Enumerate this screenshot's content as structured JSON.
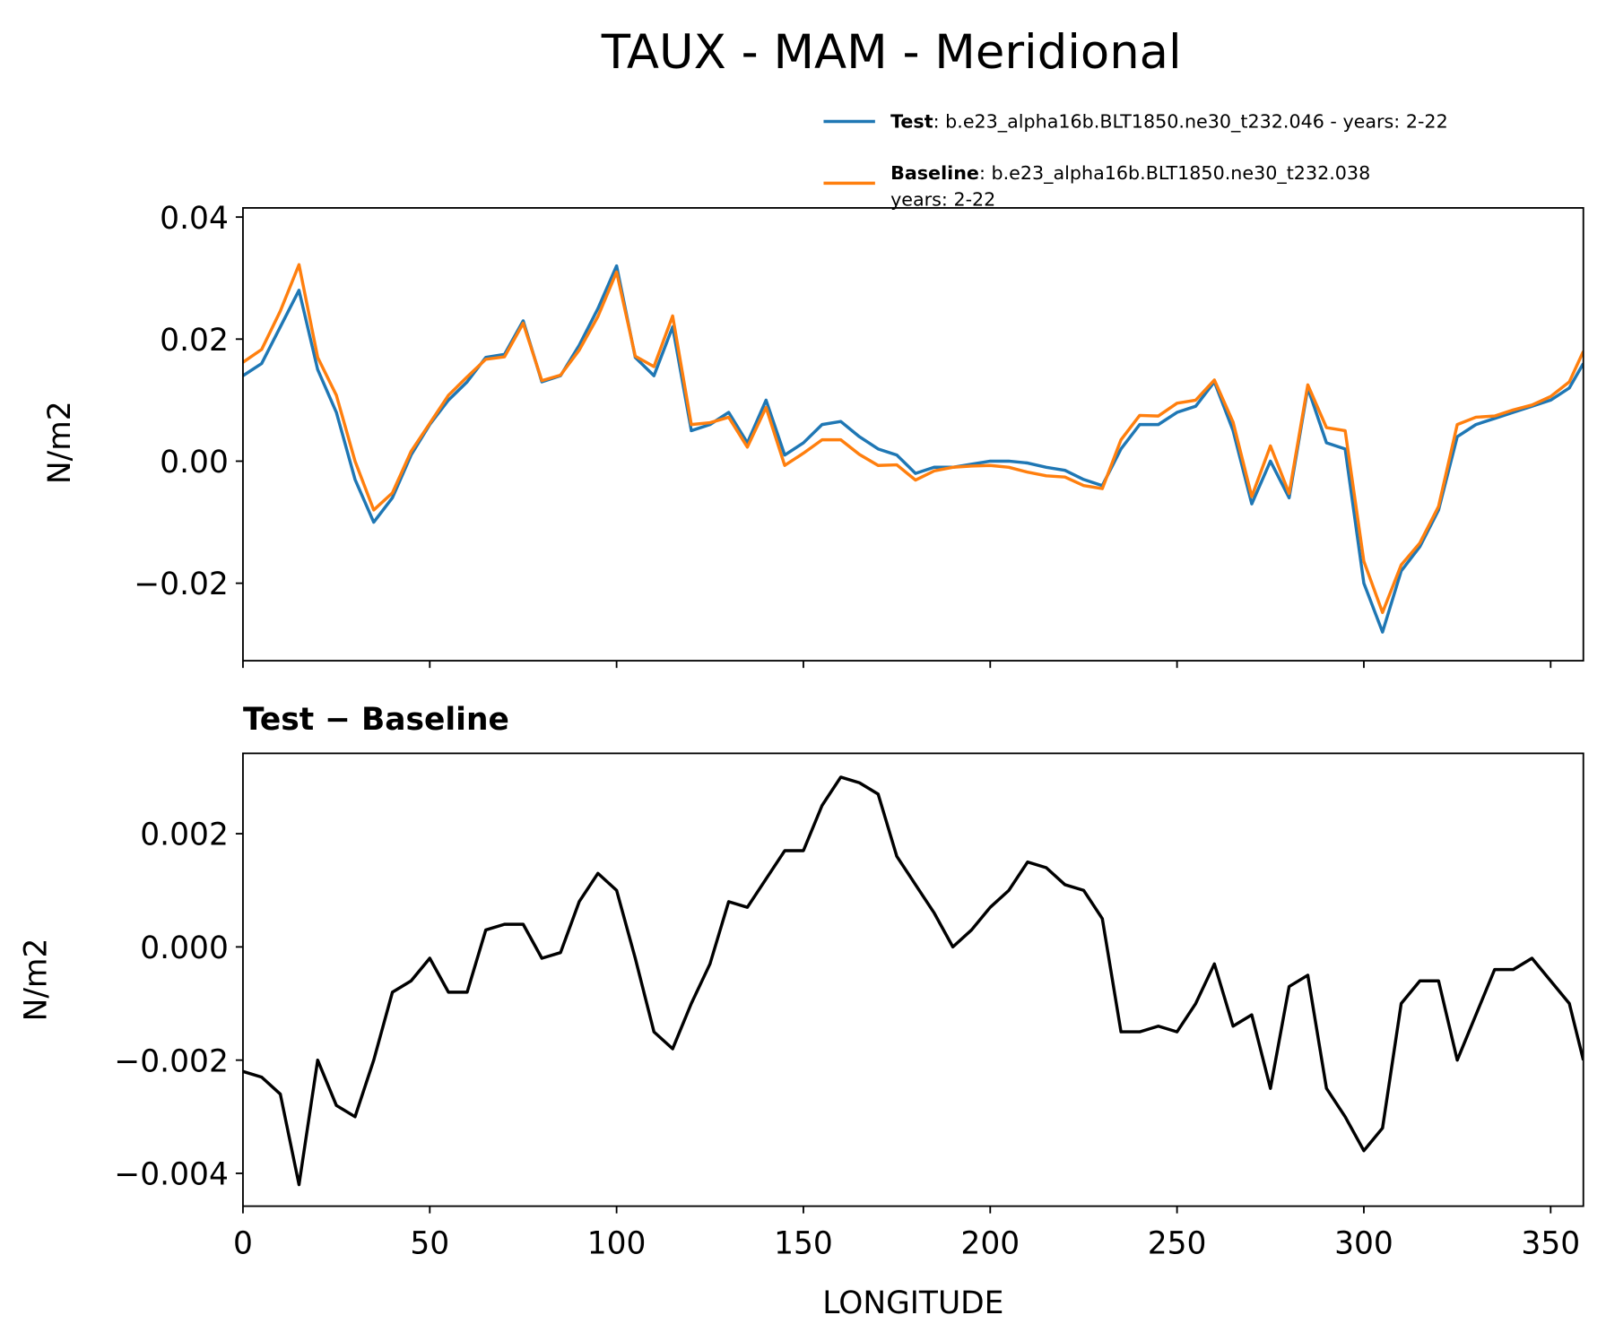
{
  "chart_data": [
    {
      "type": "line",
      "title": "TAUX - MAM - Meridional",
      "ylabel": "N/m2",
      "x": [
        0,
        5,
        10,
        15,
        20,
        25,
        30,
        35,
        40,
        45,
        50,
        55,
        60,
        65,
        70,
        75,
        80,
        85,
        90,
        95,
        100,
        105,
        110,
        115,
        120,
        125,
        130,
        135,
        140,
        145,
        150,
        155,
        160,
        165,
        170,
        175,
        180,
        185,
        190,
        195,
        200,
        205,
        210,
        215,
        220,
        225,
        230,
        235,
        240,
        245,
        250,
        255,
        260,
        265,
        270,
        275,
        280,
        285,
        290,
        295,
        300,
        305,
        310,
        315,
        320,
        325,
        330,
        335,
        340,
        345,
        350,
        355,
        358.75
      ],
      "series": [
        {
          "name": "Test",
          "legend_text": [
            ": b.e23_alpha16b.BLT1850.ne30_t232.046 - years: 2-22"
          ],
          "color": "#1f77b4",
          "values": [
            0.014,
            0.016,
            0.022,
            0.028,
            0.015,
            0.008,
            -0.003,
            -0.01,
            -0.006,
            0.001,
            0.006,
            0.01,
            0.013,
            0.017,
            0.0175,
            0.023,
            0.013,
            0.014,
            0.019,
            0.025,
            0.032,
            0.017,
            0.014,
            0.022,
            0.005,
            0.006,
            0.008,
            0.003,
            0.01,
            0.001,
            0.003,
            0.006,
            0.0065,
            0.004,
            0.002,
            0.001,
            -0.002,
            -0.001,
            -0.001,
            -0.0005,
            0.0,
            0.0,
            -0.0003,
            -0.001,
            -0.0015,
            -0.003,
            -0.004,
            0.002,
            0.006,
            0.006,
            0.008,
            0.009,
            0.013,
            0.005,
            -0.007,
            0.0,
            -0.006,
            0.012,
            0.003,
            0.002,
            -0.02,
            -0.028,
            -0.018,
            -0.014,
            -0.008,
            0.004,
            0.006,
            0.007,
            0.008,
            0.009,
            0.01,
            0.012,
            0.016
          ]
        },
        {
          "name": "Baseline",
          "legend_text": [
            ": b.e23_alpha16b.BLT1850.ne30_t232.038",
            "years: 2-22"
          ],
          "color": "#ff7f0e",
          "values": [
            0.0162,
            0.0183,
            0.0246,
            0.0322,
            0.017,
            0.0108,
            0.0,
            -0.008,
            -0.0052,
            0.0016,
            0.0062,
            0.0108,
            0.0138,
            0.0167,
            0.0171,
            0.0226,
            0.0132,
            0.0141,
            0.0182,
            0.0237,
            0.031,
            0.0172,
            0.0155,
            0.0238,
            0.006,
            0.0063,
            0.0072,
            0.0023,
            0.0088,
            -0.0007,
            0.0013,
            0.0035,
            0.0035,
            0.0011,
            -0.0007,
            -0.0006,
            -0.0031,
            -0.0016,
            -0.001,
            -0.0008,
            -0.0007,
            -0.001,
            -0.0018,
            -0.0024,
            -0.0026,
            -0.004,
            -0.0045,
            0.0035,
            0.0075,
            0.0074,
            0.0095,
            0.01,
            0.0133,
            0.0064,
            -0.0058,
            0.0025,
            -0.0053,
            0.0125,
            0.0055,
            0.005,
            -0.0164,
            -0.0248,
            -0.017,
            -0.0134,
            -0.0074,
            0.006,
            0.0072,
            0.0074,
            0.0084,
            0.0092,
            0.0106,
            0.013,
            0.018
          ]
        }
      ],
      "xlim": [
        0,
        358.75
      ],
      "xticks": [
        0,
        50,
        100,
        150,
        200,
        250,
        300,
        350
      ],
      "ylim": [
        -0.0327,
        0.0415
      ],
      "yticks": [
        {
          "value": -0.02,
          "label": "−0.02"
        },
        {
          "value": 0,
          "label": "0.00"
        },
        0.02,
        0.04
      ]
    },
    {
      "type": "line",
      "subtitle": "Test − Baseline",
      "ylabel": "N/m2",
      "xlabel": "LONGITUDE",
      "x": [
        0,
        5,
        10,
        15,
        20,
        25,
        30,
        35,
        40,
        45,
        50,
        55,
        60,
        65,
        70,
        75,
        80,
        85,
        90,
        95,
        100,
        105,
        110,
        115,
        120,
        125,
        130,
        135,
        140,
        145,
        150,
        155,
        160,
        165,
        170,
        175,
        180,
        185,
        190,
        195,
        200,
        205,
        210,
        215,
        220,
        225,
        230,
        235,
        240,
        245,
        250,
        255,
        260,
        265,
        270,
        275,
        280,
        285,
        290,
        295,
        300,
        305,
        310,
        315,
        320,
        325,
        330,
        335,
        340,
        345,
        350,
        355,
        358.75
      ],
      "series": [
        {
          "color": "#000000",
          "values": [
            -0.0022,
            -0.0023,
            -0.0026,
            -0.0042,
            -0.002,
            -0.0028,
            -0.003,
            -0.002,
            -0.0008,
            -0.0006,
            -0.0002,
            -0.0008,
            -0.0008,
            0.0003,
            0.0004,
            0.0004,
            -0.0002,
            -0.0001,
            0.0008,
            0.0013,
            0.001,
            -0.0002,
            -0.0015,
            -0.0018,
            -0.001,
            -0.0003,
            0.0008,
            0.0007,
            0.0012,
            0.0017,
            0.0017,
            0.0025,
            0.003,
            0.0029,
            0.0027,
            0.0016,
            0.0011,
            0.0006,
            0.0,
            0.0003,
            0.0007,
            0.001,
            0.0015,
            0.0014,
            0.0011,
            0.001,
            0.0005,
            -0.0015,
            -0.0015,
            -0.0014,
            -0.0015,
            -0.001,
            -0.0003,
            -0.0014,
            -0.0012,
            -0.0025,
            -0.0007,
            -0.0005,
            -0.0025,
            -0.003,
            -0.0036,
            -0.0032,
            -0.001,
            -0.0006,
            -0.0006,
            -0.002,
            -0.0012,
            -0.0004,
            -0.0004,
            -0.0002,
            -0.0006,
            -0.001,
            -0.002
          ]
        }
      ],
      "xlim": [
        0,
        358.75
      ],
      "xticks": [
        0,
        50,
        100,
        150,
        200,
        250,
        300,
        350
      ],
      "ylim": [
        -0.00458,
        0.00342
      ],
      "yticks": [
        {
          "value": -0.004,
          "label": "−0.004"
        },
        {
          "value": -0.002,
          "label": "−0.002"
        },
        {
          "value": 0,
          "label": "0.000"
        },
        0.002
      ]
    }
  ]
}
